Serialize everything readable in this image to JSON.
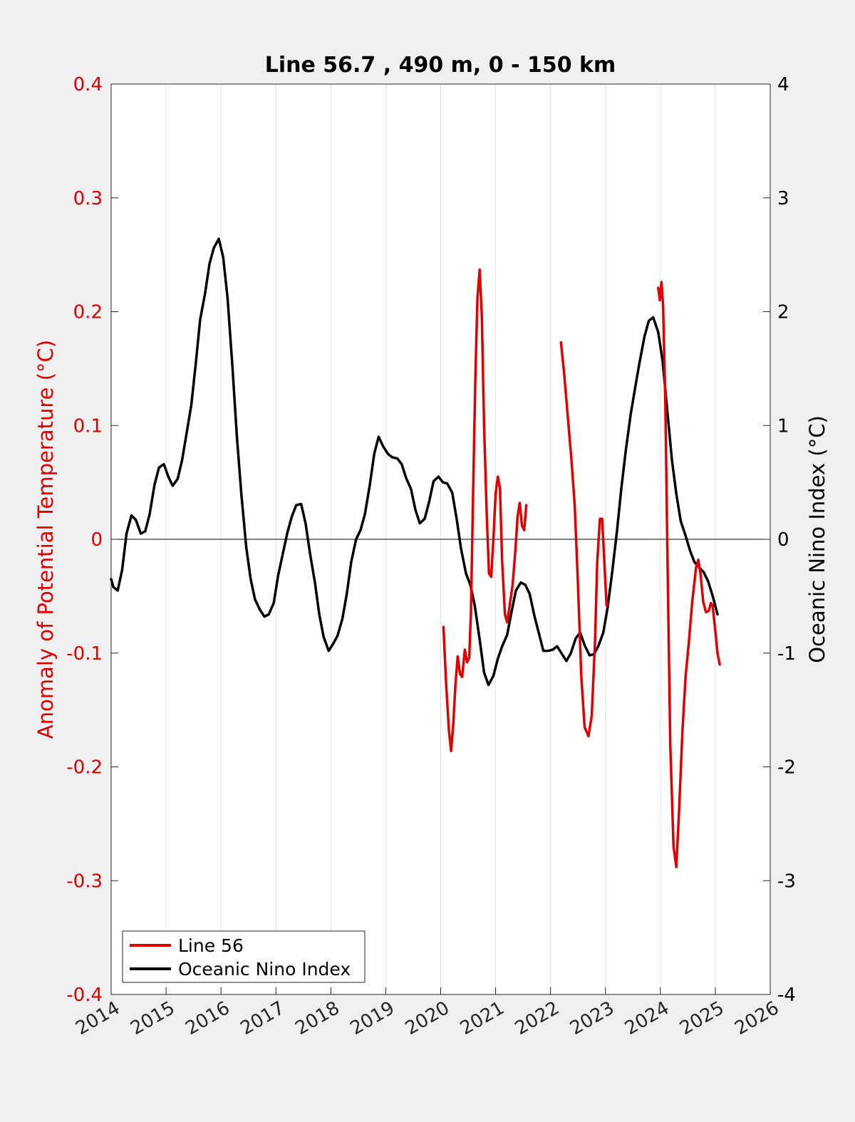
{
  "chart_data": {
    "type": "line",
    "title": "Line 56.7 , 490 m, 0 - 150 km",
    "xlim": [
      2014,
      2026
    ],
    "x_ticks": [
      "2014",
      "2015",
      "2016",
      "2017",
      "2018",
      "2019",
      "2020",
      "2021",
      "2022",
      "2023",
      "2024",
      "2025",
      "2026"
    ],
    "x_grid": true,
    "left_axis": {
      "label": "Anomaly of Potential Temperature (°C)",
      "color": "#e00000",
      "ylim": [
        -0.4,
        0.4
      ],
      "ticks": [
        "-0.4",
        "-0.3",
        "-0.2",
        "-0.1",
        "0",
        "0.1",
        "0.2",
        "0.3",
        "0.4"
      ]
    },
    "right_axis": {
      "label": "Oceanic Nino Index (°C)",
      "color": "#000000",
      "ylim": [
        -4,
        4
      ],
      "ticks": [
        "-4",
        "-3",
        "-2",
        "-1",
        "0",
        "1",
        "2",
        "3",
        "4"
      ]
    },
    "legend": {
      "placement": "bottom-left"
    },
    "series": [
      {
        "name": "Line 56",
        "axis": "left",
        "color": "#e00000",
        "segments": [
          [
            [
              2020.05,
              -0.077
            ],
            [
              2020.1,
              -0.128
            ],
            [
              2020.15,
              -0.168
            ],
            [
              2020.19,
              -0.186
            ],
            [
              2020.23,
              -0.162
            ],
            [
              2020.27,
              -0.127
            ],
            [
              2020.31,
              -0.103
            ],
            [
              2020.35,
              -0.118
            ],
            [
              2020.39,
              -0.121
            ],
            [
              2020.44,
              -0.097
            ],
            [
              2020.48,
              -0.108
            ],
            [
              2020.52,
              -0.104
            ],
            [
              2020.55,
              -0.065
            ],
            [
              2020.59,
              0.04
            ],
            [
              2020.63,
              0.14
            ],
            [
              2020.67,
              0.212
            ],
            [
              2020.71,
              0.237
            ],
            [
              2020.75,
              0.195
            ],
            [
              2020.79,
              0.1
            ],
            [
              2020.84,
              0.02
            ],
            [
              2020.88,
              -0.03
            ],
            [
              2020.92,
              -0.033
            ],
            [
              2020.96,
              0.0
            ],
            [
              2021.0,
              0.04
            ],
            [
              2021.04,
              0.055
            ],
            [
              2021.08,
              0.045
            ],
            [
              2021.12,
              -0.02
            ],
            [
              2021.17,
              -0.066
            ],
            [
              2021.21,
              -0.073
            ],
            [
              2021.25,
              -0.06
            ],
            [
              2021.31,
              -0.04
            ],
            [
              2021.36,
              -0.01
            ],
            [
              2021.4,
              0.02
            ],
            [
              2021.44,
              0.032
            ],
            [
              2021.48,
              0.012
            ],
            [
              2021.52,
              0.008
            ],
            [
              2021.56,
              0.03
            ]
          ],
          [
            [
              2022.19,
              0.173
            ],
            [
              2022.25,
              0.145
            ],
            [
              2022.31,
              0.11
            ],
            [
              2022.38,
              0.07
            ],
            [
              2022.44,
              0.03
            ],
            [
              2022.5,
              -0.04
            ],
            [
              2022.56,
              -0.12
            ],
            [
              2022.62,
              -0.165
            ],
            [
              2022.69,
              -0.173
            ],
            [
              2022.75,
              -0.155
            ],
            [
              2022.81,
              -0.09
            ],
            [
              2022.85,
              -0.02
            ],
            [
              2022.9,
              0.018
            ],
            [
              2022.94,
              0.018
            ],
            [
              2022.98,
              -0.02
            ],
            [
              2023.02,
              -0.058
            ]
          ],
          [
            [
              2023.96,
              0.221
            ],
            [
              2023.99,
              0.21
            ],
            [
              2024.02,
              0.226
            ],
            [
              2024.05,
              0.205
            ],
            [
              2024.09,
              0.12
            ],
            [
              2024.13,
              -0.02
            ],
            [
              2024.18,
              -0.18
            ],
            [
              2024.24,
              -0.27
            ],
            [
              2024.29,
              -0.288
            ],
            [
              2024.34,
              -0.24
            ],
            [
              2024.4,
              -0.17
            ],
            [
              2024.46,
              -0.12
            ],
            [
              2024.52,
              -0.09
            ],
            [
              2024.58,
              -0.055
            ],
            [
              2024.65,
              -0.025
            ],
            [
              2024.69,
              -0.018
            ],
            [
              2024.73,
              -0.03
            ],
            [
              2024.78,
              -0.055
            ],
            [
              2024.83,
              -0.064
            ],
            [
              2024.88,
              -0.063
            ],
            [
              2024.92,
              -0.056
            ],
            [
              2024.95,
              -0.058
            ],
            [
              2025.0,
              -0.08
            ],
            [
              2025.04,
              -0.1
            ],
            [
              2025.08,
              -0.11
            ]
          ]
        ]
      },
      {
        "name": "Oceanic Nino Index",
        "axis": "right",
        "color": "#000000",
        "segments": [
          [
            [
              2014.0,
              -0.35
            ],
            [
              2014.04,
              -0.42
            ],
            [
              2014.12,
              -0.45
            ],
            [
              2014.2,
              -0.27
            ],
            [
              2014.28,
              0.05
            ],
            [
              2014.37,
              0.21
            ],
            [
              2014.45,
              0.17
            ],
            [
              2014.54,
              0.05
            ],
            [
              2014.62,
              0.07
            ],
            [
              2014.7,
              0.22
            ],
            [
              2014.79,
              0.48
            ],
            [
              2014.87,
              0.63
            ],
            [
              2014.96,
              0.66
            ],
            [
              2015.04,
              0.55
            ],
            [
              2015.12,
              0.47
            ],
            [
              2015.21,
              0.53
            ],
            [
              2015.29,
              0.69
            ],
            [
              2015.37,
              0.92
            ],
            [
              2015.46,
              1.18
            ],
            [
              2015.54,
              1.54
            ],
            [
              2015.62,
              1.93
            ],
            [
              2015.71,
              2.16
            ],
            [
              2015.79,
              2.42
            ],
            [
              2015.87,
              2.56
            ],
            [
              2015.96,
              2.64
            ],
            [
              2016.04,
              2.48
            ],
            [
              2016.12,
              2.12
            ],
            [
              2016.21,
              1.5
            ],
            [
              2016.29,
              0.9
            ],
            [
              2016.37,
              0.4
            ],
            [
              2016.46,
              -0.07
            ],
            [
              2016.54,
              -0.35
            ],
            [
              2016.62,
              -0.53
            ],
            [
              2016.71,
              -0.62
            ],
            [
              2016.79,
              -0.68
            ],
            [
              2016.87,
              -0.66
            ],
            [
              2016.96,
              -0.56
            ],
            [
              2017.04,
              -0.32
            ],
            [
              2017.12,
              -0.14
            ],
            [
              2017.21,
              0.06
            ],
            [
              2017.29,
              0.2
            ],
            [
              2017.37,
              0.3
            ],
            [
              2017.46,
              0.31
            ],
            [
              2017.54,
              0.14
            ],
            [
              2017.62,
              -0.12
            ],
            [
              2017.71,
              -0.38
            ],
            [
              2017.79,
              -0.66
            ],
            [
              2017.87,
              -0.86
            ],
            [
              2017.96,
              -0.98
            ],
            [
              2018.04,
              -0.92
            ],
            [
              2018.12,
              -0.85
            ],
            [
              2018.21,
              -0.7
            ],
            [
              2018.29,
              -0.48
            ],
            [
              2018.37,
              -0.2
            ],
            [
              2018.46,
              0.0
            ],
            [
              2018.54,
              0.08
            ],
            [
              2018.62,
              0.22
            ],
            [
              2018.71,
              0.48
            ],
            [
              2018.79,
              0.75
            ],
            [
              2018.87,
              0.9
            ],
            [
              2018.96,
              0.81
            ],
            [
              2019.04,
              0.75
            ],
            [
              2019.12,
              0.72
            ],
            [
              2019.21,
              0.71
            ],
            [
              2019.29,
              0.66
            ],
            [
              2019.37,
              0.54
            ],
            [
              2019.46,
              0.44
            ],
            [
              2019.54,
              0.26
            ],
            [
              2019.62,
              0.14
            ],
            [
              2019.71,
              0.18
            ],
            [
              2019.79,
              0.33
            ],
            [
              2019.87,
              0.51
            ],
            [
              2019.96,
              0.55
            ],
            [
              2020.04,
              0.5
            ],
            [
              2020.12,
              0.49
            ],
            [
              2020.21,
              0.41
            ],
            [
              2020.29,
              0.18
            ],
            [
              2020.37,
              -0.08
            ],
            [
              2020.46,
              -0.3
            ],
            [
              2020.54,
              -0.4
            ],
            [
              2020.62,
              -0.58
            ],
            [
              2020.71,
              -0.88
            ],
            [
              2020.79,
              -1.17
            ],
            [
              2020.87,
              -1.28
            ],
            [
              2020.96,
              -1.2
            ],
            [
              2021.04,
              -1.05
            ],
            [
              2021.12,
              -0.94
            ],
            [
              2021.21,
              -0.84
            ],
            [
              2021.29,
              -0.64
            ],
            [
              2021.37,
              -0.45
            ],
            [
              2021.46,
              -0.38
            ],
            [
              2021.54,
              -0.4
            ],
            [
              2021.62,
              -0.48
            ],
            [
              2021.71,
              -0.68
            ],
            [
              2021.79,
              -0.83
            ],
            [
              2021.87,
              -0.98
            ],
            [
              2021.96,
              -0.98
            ],
            [
              2022.04,
              -0.97
            ],
            [
              2022.12,
              -0.94
            ],
            [
              2022.21,
              -1.01
            ],
            [
              2022.29,
              -1.07
            ],
            [
              2022.37,
              -1.0
            ],
            [
              2022.46,
              -0.87
            ],
            [
              2022.54,
              -0.82
            ],
            [
              2022.62,
              -0.93
            ],
            [
              2022.71,
              -1.02
            ],
            [
              2022.79,
              -1.01
            ],
            [
              2022.87,
              -0.94
            ],
            [
              2022.96,
              -0.82
            ],
            [
              2023.04,
              -0.6
            ],
            [
              2023.12,
              -0.3
            ],
            [
              2023.21,
              0.07
            ],
            [
              2023.29,
              0.45
            ],
            [
              2023.37,
              0.78
            ],
            [
              2023.46,
              1.1
            ],
            [
              2023.54,
              1.33
            ],
            [
              2023.62,
              1.55
            ],
            [
              2023.71,
              1.78
            ],
            [
              2023.79,
              1.92
            ],
            [
              2023.87,
              1.95
            ],
            [
              2023.96,
              1.82
            ],
            [
              2024.04,
              1.57
            ],
            [
              2024.12,
              1.16
            ],
            [
              2024.21,
              0.7
            ],
            [
              2024.29,
              0.4
            ],
            [
              2024.37,
              0.16
            ],
            [
              2024.46,
              0.03
            ],
            [
              2024.54,
              -0.1
            ],
            [
              2024.62,
              -0.2
            ],
            [
              2024.71,
              -0.25
            ],
            [
              2024.79,
              -0.29
            ],
            [
              2024.87,
              -0.37
            ],
            [
              2024.96,
              -0.51
            ],
            [
              2025.04,
              -0.66
            ]
          ]
        ]
      }
    ]
  }
}
